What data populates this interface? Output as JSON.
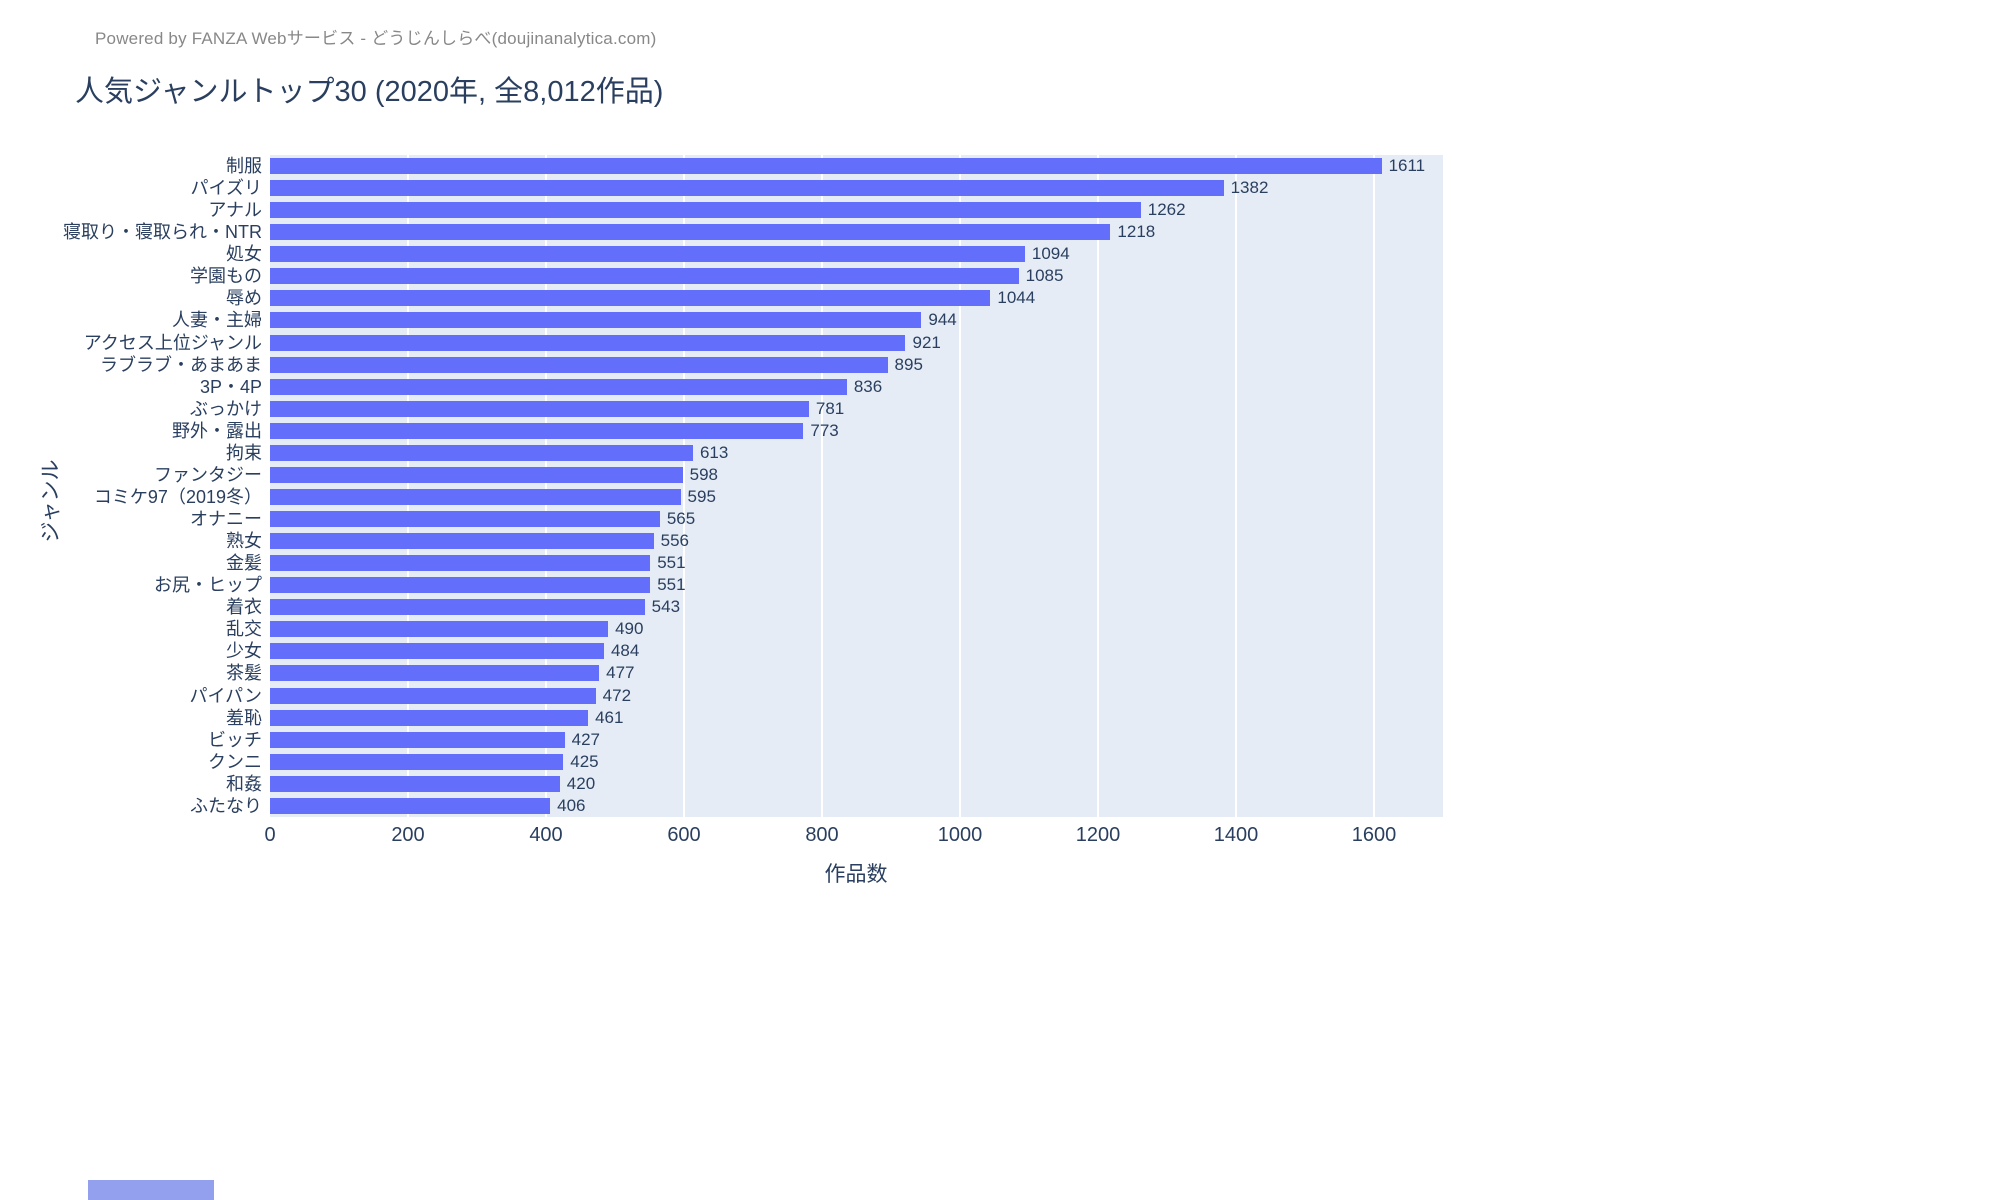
{
  "header": {
    "powered_by": "Powered by FANZA Webサービス - どうじんしらべ(doujinanalytica.com)",
    "title": "人気ジャンルトップ30 (2020年, 全8,012作品)"
  },
  "chart_data": {
    "type": "bar",
    "orientation": "horizontal",
    "title": "人気ジャンルトップ30 (2020年, 全8,012作品)",
    "categories": [
      "制服",
      "パイズリ",
      "アナル",
      "寝取り・寝取られ・NTR",
      "処女",
      "学園もの",
      "辱め",
      "人妻・主婦",
      "アクセス上位ジャンル",
      "ラブラブ・あまあま",
      "3P・4P",
      "ぶっかけ",
      "野外・露出",
      "拘束",
      "ファンタジー",
      "コミケ97（2019冬）",
      "オナニー",
      "熟女",
      "金髪",
      "お尻・ヒップ",
      "着衣",
      "乱交",
      "少女",
      "茶髪",
      "パイパン",
      "羞恥",
      "ビッチ",
      "クンニ",
      "和姦",
      "ふたなり"
    ],
    "values": [
      1611,
      1382,
      1262,
      1218,
      1094,
      1085,
      1044,
      944,
      921,
      895,
      836,
      781,
      773,
      613,
      598,
      595,
      565,
      556,
      551,
      551,
      543,
      490,
      484,
      477,
      472,
      461,
      427,
      425,
      420,
      406
    ],
    "xlabel": "作品数",
    "ylabel": "ジャンル",
    "xlim": [
      0,
      1700
    ],
    "xticks": [
      0,
      200,
      400,
      600,
      800,
      1000,
      1200,
      1400,
      1600
    ],
    "grid": true,
    "legend": "none",
    "colors": {
      "bar": "#636efa",
      "plot_background": "#e5ecf6",
      "gridline": "#ffffff",
      "text": "#2a3f5f",
      "powered_by_text": "#888888"
    }
  }
}
